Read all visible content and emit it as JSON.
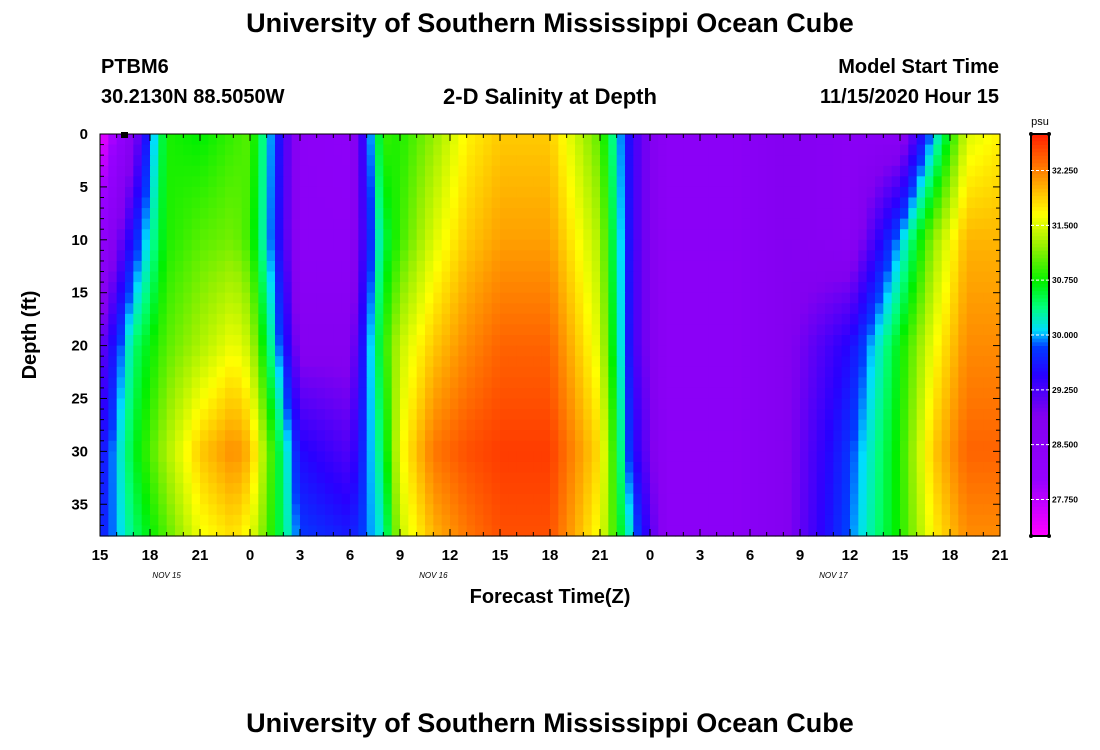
{
  "header": {
    "title": "University of Southern Mississippi Ocean Cube",
    "station_id": "PTBM6",
    "location": "30.2130N 88.5050W",
    "plot_title": "2-D Salinity at Depth",
    "model_start_label": "Model Start Time",
    "model_start_value": "11/15/2020 Hour 15"
  },
  "footer": {
    "title": "University of Southern Mississippi Ocean Cube"
  },
  "chart_data": {
    "type": "heatmap",
    "title": "2-D Salinity at Depth",
    "xlabel": "Forecast Time(Z)",
    "ylabel": "Depth (ft)",
    "x_ticks": [
      "15",
      "18",
      "21",
      "0",
      "3",
      "6",
      "9",
      "12",
      "15",
      "18",
      "21",
      "0",
      "3",
      "6",
      "9",
      "12",
      "15",
      "18",
      "21"
    ],
    "date_labels": [
      {
        "label": "NOV 15",
        "hour_index": 4
      },
      {
        "label": "NOV 16",
        "hour_index": 20
      },
      {
        "label": "NOV 17",
        "hour_index": 44
      }
    ],
    "xlim_hours": [
      0,
      54
    ],
    "y_ticks": [
      0,
      5,
      10,
      15,
      20,
      25,
      30,
      35
    ],
    "ylim": [
      0,
      38
    ],
    "colorbar": {
      "unit": "psu",
      "range": [
        27.25,
        32.75
      ],
      "tick_values": [
        27.75,
        28.5,
        29.25,
        30.0,
        30.75,
        31.5,
        32.25
      ],
      "tick_labels": [
        "27.750",
        "28.500",
        "29.250",
        "30.000",
        "30.750",
        "31.500",
        "32.250"
      ]
    },
    "hours": [
      0,
      2,
      4,
      6,
      8,
      9,
      12,
      15,
      17,
      18,
      20,
      22,
      24,
      27,
      30,
      32,
      34,
      36,
      38,
      41,
      45,
      48,
      50,
      52,
      54
    ],
    "depths": [
      0,
      10,
      20,
      30,
      38
    ],
    "salinity": [
      [
        27.3,
        28.8,
        30.8,
        30.7,
        30.9,
        31.0,
        28.5,
        28.4,
        30.9,
        30.8,
        31.2,
        31.7,
        31.9,
        31.9,
        31.0,
        29.3,
        28.5,
        28.5,
        28.5,
        28.8,
        28.6,
        28.6,
        30.0,
        31.5,
        31.7
      ],
      [
        28.2,
        29.6,
        30.8,
        31.0,
        31.1,
        30.9,
        28.5,
        28.5,
        30.5,
        30.9,
        31.5,
        31.9,
        32.1,
        32.1,
        31.3,
        29.3,
        28.5,
        28.5,
        28.5,
        28.8,
        28.6,
        30.0,
        31.2,
        32.0,
        32.0
      ],
      [
        29.0,
        30.4,
        31.0,
        31.3,
        31.6,
        31.4,
        28.8,
        28.8,
        30.8,
        31.4,
        31.9,
        32.2,
        32.4,
        32.4,
        31.5,
        29.3,
        28.5,
        28.5,
        28.5,
        28.8,
        29.5,
        30.7,
        31.6,
        32.2,
        32.2
      ],
      [
        29.5,
        30.6,
        31.3,
        31.9,
        32.2,
        32.0,
        29.5,
        29.2,
        30.5,
        31.6,
        32.3,
        32.5,
        32.6,
        32.6,
        31.8,
        29.5,
        28.5,
        28.5,
        28.5,
        28.8,
        29.8,
        30.8,
        31.9,
        32.4,
        32.4
      ],
      [
        29.6,
        30.4,
        31.0,
        31.6,
        31.8,
        31.6,
        29.8,
        29.6,
        30.2,
        31.4,
        32.0,
        32.3,
        32.5,
        32.5,
        31.6,
        30.0,
        28.5,
        28.5,
        28.5,
        28.8,
        29.9,
        30.8,
        31.7,
        32.2,
        32.2
      ]
    ]
  }
}
